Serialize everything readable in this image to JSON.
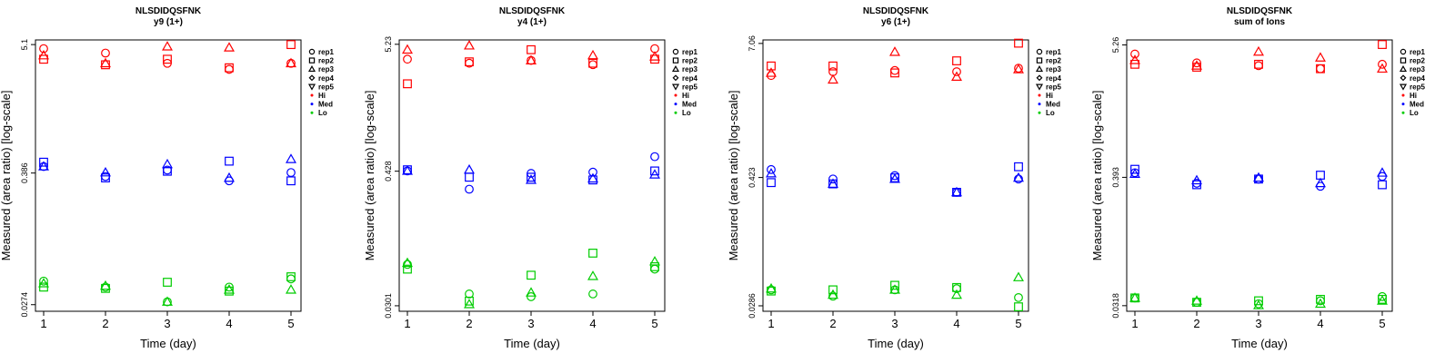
{
  "chart_data": [
    {
      "type": "scatter",
      "title": "NLSDIDQSFNK",
      "subtitle": "y9 (1+)",
      "xlabel": "Time (day)",
      "ylabel": "Measured (area ratio) [log-scale]",
      "x_ticks": [
        "1",
        "2",
        "3",
        "4",
        "5"
      ],
      "y_ticks": [
        {
          "value": 5.1,
          "label": "5.1"
        },
        {
          "value": 0.386,
          "label": "0.386"
        },
        {
          "value": 0.0274,
          "label": "0.0274"
        }
      ],
      "ylim": [
        0.024,
        5.6
      ],
      "log_y": true,
      "grid": false,
      "legend_position": "right",
      "series": [
        {
          "group": "Hi",
          "rep": "rep1",
          "values": [
            4.7,
            4.3,
            3.5,
            3.1,
            3.5
          ]
        },
        {
          "group": "Hi",
          "rep": "rep2",
          "values": [
            3.8,
            3.4,
            3.8,
            3.2,
            5.1
          ]
        },
        {
          "group": "Hi",
          "rep": "rep3",
          "values": [
            4.1,
            3.5,
            4.9,
            4.8,
            3.5
          ]
        },
        {
          "group": "Med",
          "rep": "rep1",
          "values": [
            0.44,
            0.36,
            0.41,
            0.33,
            0.39
          ]
        },
        {
          "group": "Med",
          "rep": "rep2",
          "values": [
            0.48,
            0.35,
            0.4,
            0.49,
            0.33
          ]
        },
        {
          "group": "Med",
          "rep": "rep3",
          "values": [
            0.44,
            0.39,
            0.46,
            0.35,
            0.51
          ]
        },
        {
          "group": "Lo",
          "rep": "rep1",
          "values": [
            0.044,
            0.039,
            0.029,
            0.039,
            0.046
          ]
        },
        {
          "group": "Lo",
          "rep": "rep2",
          "values": [
            0.039,
            0.038,
            0.043,
            0.036,
            0.048
          ]
        },
        {
          "group": "Lo",
          "rep": "rep3",
          "values": [
            0.042,
            0.04,
            0.029,
            0.037,
            0.037
          ]
        }
      ]
    },
    {
      "type": "scatter",
      "title": "NLSDIDQSFNK",
      "subtitle": "y4 (1+)",
      "xlabel": "Time (day)",
      "ylabel": "Measured (area ratio) [log-scale]",
      "x_ticks": [
        "1",
        "2",
        "3",
        "4",
        "5"
      ],
      "y_ticks": [
        {
          "value": 5.23,
          "label": "5.23"
        },
        {
          "value": 0.428,
          "label": "0.428"
        },
        {
          "value": 0.0301,
          "label": "0.0301"
        }
      ],
      "ylim": [
        0.027,
        5.7
      ],
      "log_y": true,
      "grid": false,
      "legend_position": "right",
      "series": [
        {
          "group": "Hi",
          "rep": "rep1",
          "values": [
            3.9,
            3.6,
            3.8,
            3.5,
            4.8
          ]
        },
        {
          "group": "Hi",
          "rep": "rep2",
          "values": [
            2.4,
            3.7,
            4.7,
            3.6,
            3.9
          ]
        },
        {
          "group": "Hi",
          "rep": "rep3",
          "values": [
            4.7,
            5.1,
            3.8,
            4.2,
            4.1
          ]
        },
        {
          "group": "Med",
          "rep": "rep1",
          "values": [
            0.43,
            0.3,
            0.41,
            0.42,
            0.57
          ]
        },
        {
          "group": "Med",
          "rep": "rep2",
          "values": [
            0.44,
            0.38,
            0.38,
            0.36,
            0.43
          ]
        },
        {
          "group": "Med",
          "rep": "rep3",
          "values": [
            0.43,
            0.44,
            0.36,
            0.37,
            0.4
          ]
        },
        {
          "group": "Lo",
          "rep": "rep1",
          "values": [
            0.068,
            0.038,
            0.036,
            0.038,
            0.062
          ]
        },
        {
          "group": "Lo",
          "rep": "rep2",
          "values": [
            0.062,
            0.033,
            0.055,
            0.085,
            0.065
          ]
        },
        {
          "group": "Lo",
          "rep": "rep3",
          "values": [
            0.07,
            0.031,
            0.039,
            0.054,
            0.072
          ]
        }
      ]
    },
    {
      "type": "scatter",
      "title": "NLSDIDQSFNK",
      "subtitle": "y6 (1+)",
      "xlabel": "Time (day)",
      "ylabel": "Measured (area ratio) [log-scale]",
      "x_ticks": [
        "1",
        "2",
        "3",
        "4",
        "5"
      ],
      "y_ticks": [
        {
          "value": 7.06,
          "label": "7.06"
        },
        {
          "value": 0.423,
          "label": "0.423"
        },
        {
          "value": 0.0286,
          "label": "0.0286"
        }
      ],
      "ylim": [
        0.0255,
        7.6
      ],
      "log_y": true,
      "grid": false,
      "legend_position": "right",
      "series": [
        {
          "group": "Hi",
          "rep": "rep1",
          "values": [
            3.6,
            3.9,
            4.0,
            3.9,
            4.2
          ]
        },
        {
          "group": "Hi",
          "rep": "rep2",
          "values": [
            4.4,
            4.4,
            3.8,
            4.9,
            7.1
          ]
        },
        {
          "group": "Hi",
          "rep": "rep3",
          "values": [
            3.8,
            3.3,
            5.9,
            3.5,
            4.1
          ]
        },
        {
          "group": "Med",
          "rep": "rep1",
          "values": [
            0.5,
            0.41,
            0.44,
            0.31,
            0.41
          ]
        },
        {
          "group": "Med",
          "rep": "rep2",
          "values": [
            0.38,
            0.37,
            0.42,
            0.31,
            0.53
          ]
        },
        {
          "group": "Med",
          "rep": "rep3",
          "values": [
            0.46,
            0.37,
            0.41,
            0.31,
            0.42
          ]
        },
        {
          "group": "Lo",
          "rep": "rep1",
          "values": [
            0.04,
            0.035,
            0.04,
            0.041,
            0.034
          ]
        },
        {
          "group": "Lo",
          "rep": "rep2",
          "values": [
            0.039,
            0.04,
            0.044,
            0.042,
            0.028
          ]
        },
        {
          "group": "Lo",
          "rep": "rep3",
          "values": [
            0.041,
            0.036,
            0.04,
            0.036,
            0.052
          ]
        }
      ]
    },
    {
      "type": "scatter",
      "title": "NLSDIDQSFNK",
      "subtitle": "sum of Ions",
      "xlabel": "Time (day)",
      "ylabel": "Measured (area ratio) [log-scale]",
      "x_ticks": [
        "1",
        "2",
        "3",
        "4",
        "5"
      ],
      "y_ticks": [
        {
          "value": 5.26,
          "label": "5.26"
        },
        {
          "value": 0.393,
          "label": "0.393"
        },
        {
          "value": 0.0318,
          "label": "0.0318"
        }
      ],
      "ylim": [
        0.0285,
        5.8
      ],
      "log_y": true,
      "grid": false,
      "legend_position": "right",
      "series": [
        {
          "group": "Hi",
          "rep": "rep1",
          "values": [
            4.4,
            3.7,
            3.5,
            3.3,
            3.6
          ]
        },
        {
          "group": "Hi",
          "rep": "rep2",
          "values": [
            3.6,
            3.4,
            3.6,
            3.3,
            5.3
          ]
        },
        {
          "group": "Hi",
          "rep": "rep3",
          "values": [
            3.9,
            3.5,
            4.6,
            4.1,
            3.3
          ]
        },
        {
          "group": "Med",
          "rep": "rep1",
          "values": [
            0.43,
            0.35,
            0.38,
            0.33,
            0.4
          ]
        },
        {
          "group": "Med",
          "rep": "rep2",
          "values": [
            0.46,
            0.34,
            0.38,
            0.41,
            0.34
          ]
        },
        {
          "group": "Med",
          "rep": "rep3",
          "values": [
            0.42,
            0.37,
            0.39,
            0.35,
            0.43
          ]
        },
        {
          "group": "Lo",
          "rep": "rep1",
          "values": [
            0.037,
            0.034,
            0.033,
            0.035,
            0.038
          ]
        },
        {
          "group": "Lo",
          "rep": "rep2",
          "values": [
            0.037,
            0.034,
            0.035,
            0.036,
            0.036
          ]
        },
        {
          "group": "Lo",
          "rep": "rep3",
          "values": [
            0.037,
            0.035,
            0.032,
            0.033,
            0.035
          ]
        }
      ]
    }
  ],
  "legend": {
    "reps": [
      {
        "label": "rep1",
        "shape": "circle"
      },
      {
        "label": "rep2",
        "shape": "square"
      },
      {
        "label": "rep3",
        "shape": "triangle-up"
      },
      {
        "label": "rep4",
        "shape": "diamond"
      },
      {
        "label": "rep5",
        "shape": "triangle-down"
      }
    ],
    "groups": [
      {
        "label": "Hi",
        "color": "#ff0000"
      },
      {
        "label": "Med",
        "color": "#0000ff"
      },
      {
        "label": "Lo",
        "color": "#00cc00"
      }
    ]
  }
}
